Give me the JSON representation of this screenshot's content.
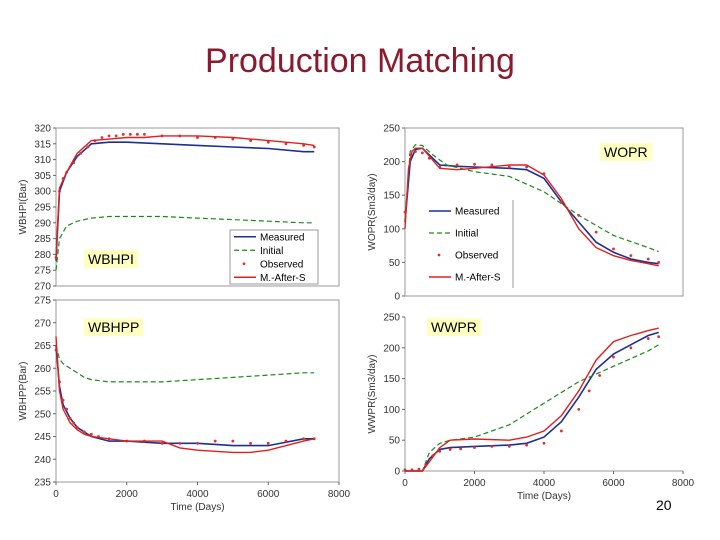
{
  "slide": {
    "title": "Production Matching",
    "page_number": "20"
  },
  "colors": {
    "title": "#8b1a2e",
    "measured": "#1f2f8f",
    "initial": "#1a8a1a",
    "observed": "#e03030",
    "after": "#e02020",
    "label_bg": "#ffffc0"
  },
  "chart_data": [
    {
      "id": "wbhpi",
      "type": "line",
      "label": "WBHPI",
      "ylabel": "WBHPI(Bar)",
      "xlabel": "",
      "ylim": [
        270,
        320
      ],
      "yticks": [
        270,
        275,
        280,
        285,
        290,
        295,
        300,
        305,
        310,
        315,
        320
      ],
      "ytick_labels": [
        "270",
        "275",
        "280",
        "285",
        "290",
        "295",
        "300",
        "305",
        "310",
        "315",
        "320"
      ],
      "xlim": [
        0,
        8000
      ],
      "xticks": [],
      "xtick_labels": [],
      "legend": {
        "placement": "bottom-right",
        "entries": [
          "Measured",
          "Initial",
          "Observed",
          "M.-After-S"
        ]
      },
      "series": [
        {
          "name": "Measured",
          "style": "measured",
          "x": [
            0,
            100,
            300,
            600,
            1000,
            1500,
            2000,
            3000,
            4000,
            5000,
            6000,
            7000,
            7300
          ],
          "y": [
            278,
            300,
            306,
            311,
            315,
            315.5,
            315.5,
            315,
            314.5,
            314,
            313.5,
            312.5,
            312.5
          ]
        },
        {
          "name": "Initial",
          "style": "initial",
          "x": [
            0,
            100,
            300,
            600,
            1000,
            1500,
            2000,
            3000,
            4000,
            5000,
            6000,
            7000,
            7300
          ],
          "y": [
            275,
            285,
            289,
            290.5,
            291.5,
            292,
            292,
            292,
            291.5,
            291,
            290.5,
            290,
            290
          ]
        },
        {
          "name": "Observed",
          "style": "observed",
          "x": [
            0,
            100,
            200,
            300,
            500,
            700,
            900,
            1100,
            1300,
            1500,
            1700,
            1900,
            2100,
            2300,
            2500,
            3000,
            3500,
            4000,
            4500,
            5000,
            5500,
            6000,
            6500,
            7000,
            7300
          ],
          "y": [
            279,
            300,
            304,
            306,
            309,
            312,
            314,
            316,
            317,
            317.5,
            317.5,
            318,
            318,
            318,
            318,
            317.5,
            317.5,
            317,
            317,
            316.5,
            316,
            315.5,
            315,
            314.5,
            314
          ]
        },
        {
          "name": "M.-After-S",
          "style": "after",
          "x": [
            0,
            100,
            300,
            600,
            1000,
            1500,
            2000,
            2500,
            3000,
            4000,
            5000,
            6000,
            7000,
            7300
          ],
          "y": [
            279,
            301,
            306,
            312,
            316,
            316.5,
            317,
            317,
            317.5,
            317.5,
            317,
            316,
            315,
            314.5
          ]
        }
      ]
    },
    {
      "id": "wbhpp",
      "type": "line",
      "label": "WBHPP",
      "ylabel": "WBHPP(Bar)",
      "xlabel": "Time (Days)",
      "ylim": [
        235,
        275
      ],
      "yticks": [
        235,
        240,
        245,
        250,
        255,
        260,
        265,
        270,
        275
      ],
      "ytick_labels": [
        "235",
        "240",
        "245",
        "250",
        "255",
        "260",
        "265",
        "270",
        "275"
      ],
      "xlim": [
        0,
        8000
      ],
      "xticks": [
        0,
        2000,
        4000,
        6000,
        8000
      ],
      "xtick_labels": [
        "0",
        "2000",
        "4000",
        "6000",
        "8000"
      ],
      "series": [
        {
          "name": "Measured",
          "style": "measured",
          "x": [
            0,
            100,
            200,
            400,
            600,
            800,
            1000,
            1500,
            2000,
            3000,
            4000,
            5000,
            6000,
            7000,
            7300
          ],
          "y": [
            265,
            256,
            252,
            249,
            247,
            246,
            245,
            244,
            244,
            243.5,
            243.5,
            243,
            243,
            244.5,
            244.5
          ]
        },
        {
          "name": "Initial",
          "style": "initial",
          "x": [
            0,
            100,
            200,
            400,
            600,
            800,
            1000,
            1500,
            2000,
            3000,
            4000,
            5000,
            6000,
            7000,
            7300
          ],
          "y": [
            265,
            262,
            261,
            260,
            259,
            258,
            257.5,
            257,
            257,
            257,
            257.5,
            258,
            258.5,
            259,
            259
          ]
        },
        {
          "name": "Observed",
          "style": "observed",
          "x": [
            0,
            100,
            200,
            300,
            400,
            500,
            600,
            800,
            1000,
            1200,
            1500,
            2000,
            2500,
            3000,
            3500,
            4000,
            4500,
            5000,
            5500,
            6000,
            6500,
            7000,
            7300
          ],
          "y": [
            264,
            257,
            253,
            251,
            249,
            248,
            247,
            246,
            245.5,
            245,
            244.5,
            244,
            244,
            243.5,
            243.5,
            243.5,
            244,
            244,
            243.5,
            243.5,
            244,
            244.5,
            244.5
          ]
        },
        {
          "name": "M.-After-S",
          "style": "after",
          "x": [
            0,
            100,
            200,
            400,
            600,
            800,
            1000,
            1500,
            2000,
            3000,
            3500,
            4000,
            5000,
            5500,
            6000,
            7000,
            7300
          ],
          "y": [
            267,
            255,
            251,
            248,
            246.5,
            245.5,
            245,
            244.5,
            244,
            244,
            242.5,
            242,
            241.5,
            241.5,
            242,
            244,
            244.5
          ]
        }
      ]
    },
    {
      "id": "wopr",
      "type": "line",
      "label": "WOPR",
      "ylabel": "WOPR(Sm3/day)",
      "xlabel": "",
      "ylim": [
        0,
        250
      ],
      "yticks": [
        0,
        50,
        100,
        150,
        200,
        250
      ],
      "ytick_labels": [
        "0",
        "50",
        "100",
        "150",
        "200",
        "250"
      ],
      "xlim": [
        0,
        8000
      ],
      "xticks": [],
      "xtick_labels": [],
      "legend": {
        "placement": "inside-right",
        "entries": [
          "Measured",
          "Initial",
          "Observed",
          "M.-After-S"
        ]
      },
      "series": [
        {
          "name": "Measured",
          "style": "measured",
          "x": [
            0,
            150,
            300,
            500,
            700,
            1000,
            1500,
            2000,
            3000,
            3500,
            4000,
            4500,
            5000,
            5500,
            6000,
            6500,
            7000,
            7300
          ],
          "y": [
            110,
            200,
            218,
            220,
            210,
            195,
            193,
            192,
            190,
            188,
            175,
            140,
            110,
            80,
            65,
            55,
            50,
            48
          ]
        },
        {
          "name": "Initial",
          "style": "initial",
          "x": [
            0,
            150,
            300,
            500,
            800,
            1200,
            2000,
            3000,
            4000,
            5000,
            6000,
            7000,
            7300
          ],
          "y": [
            115,
            215,
            225,
            224,
            210,
            195,
            185,
            178,
            155,
            120,
            90,
            72,
            66
          ]
        },
        {
          "name": "Observed",
          "style": "observed",
          "x": [
            0,
            150,
            300,
            500,
            700,
            1000,
            1500,
            2000,
            2500,
            3000,
            3500,
            4000,
            4500,
            5000,
            5500,
            6000,
            6500,
            7000,
            7300
          ],
          "y": [
            125,
            210,
            215,
            213,
            205,
            192,
            195,
            196,
            195,
            192,
            192,
            182,
            140,
            120,
            95,
            70,
            60,
            55,
            50
          ]
        },
        {
          "name": "M.-After-S",
          "style": "after",
          "x": [
            0,
            100,
            200,
            300,
            500,
            700,
            1000,
            1500,
            2000,
            3000,
            3500,
            4000,
            4500,
            5000,
            5500,
            6000,
            6500,
            7000,
            7300
          ],
          "y": [
            100,
            190,
            215,
            220,
            220,
            208,
            190,
            188,
            190,
            195,
            195,
            180,
            145,
            100,
            72,
            60,
            53,
            48,
            45
          ]
        }
      ]
    },
    {
      "id": "wwpr",
      "type": "line",
      "label": "WWPR",
      "ylabel": "WWPR(Sm3/day)",
      "xlabel": "Time (Days)",
      "ylim": [
        0,
        250
      ],
      "yticks": [
        0,
        50,
        100,
        150,
        200,
        250
      ],
      "ytick_labels": [
        "0",
        "50",
        "100",
        "150",
        "200",
        "250"
      ],
      "xlim": [
        0,
        8000
      ],
      "xticks": [
        0,
        2000,
        4000,
        6000,
        8000
      ],
      "xtick_labels": [
        "0",
        "2000",
        "4000",
        "6000",
        "8000"
      ],
      "series": [
        {
          "name": "Measured",
          "style": "measured",
          "x": [
            0,
            500,
            700,
            1000,
            1300,
            2000,
            3000,
            3500,
            4000,
            4500,
            5000,
            5500,
            6000,
            6500,
            7000,
            7300
          ],
          "y": [
            0,
            0,
            20,
            35,
            38,
            40,
            42,
            45,
            55,
            80,
            120,
            165,
            190,
            205,
            220,
            225
          ]
        },
        {
          "name": "Initial",
          "style": "initial",
          "x": [
            0,
            500,
            700,
            1000,
            1300,
            2000,
            3000,
            4000,
            5000,
            6000,
            7000,
            7300
          ],
          "y": [
            0,
            0,
            30,
            45,
            50,
            55,
            75,
            110,
            145,
            170,
            195,
            205
          ]
        },
        {
          "name": "Observed",
          "style": "observed",
          "x": [
            0,
            200,
            400,
            600,
            800,
            1000,
            1300,
            1600,
            2000,
            2500,
            3000,
            3500,
            4000,
            4500,
            5000,
            5300,
            5600,
            6000,
            6500,
            7000,
            7300
          ],
          "y": [
            2,
            2,
            3,
            10,
            25,
            32,
            35,
            36,
            38,
            40,
            40,
            42,
            45,
            65,
            100,
            130,
            155,
            185,
            200,
            215,
            218
          ]
        },
        {
          "name": "M.-After-S",
          "style": "after",
          "x": [
            0,
            500,
            700,
            1000,
            1300,
            2000,
            3000,
            3500,
            4000,
            4500,
            5000,
            5500,
            6000,
            6500,
            7000,
            7300
          ],
          "y": [
            0,
            0,
            15,
            38,
            50,
            52,
            50,
            55,
            65,
            90,
            130,
            180,
            210,
            220,
            228,
            232
          ]
        }
      ]
    }
  ]
}
